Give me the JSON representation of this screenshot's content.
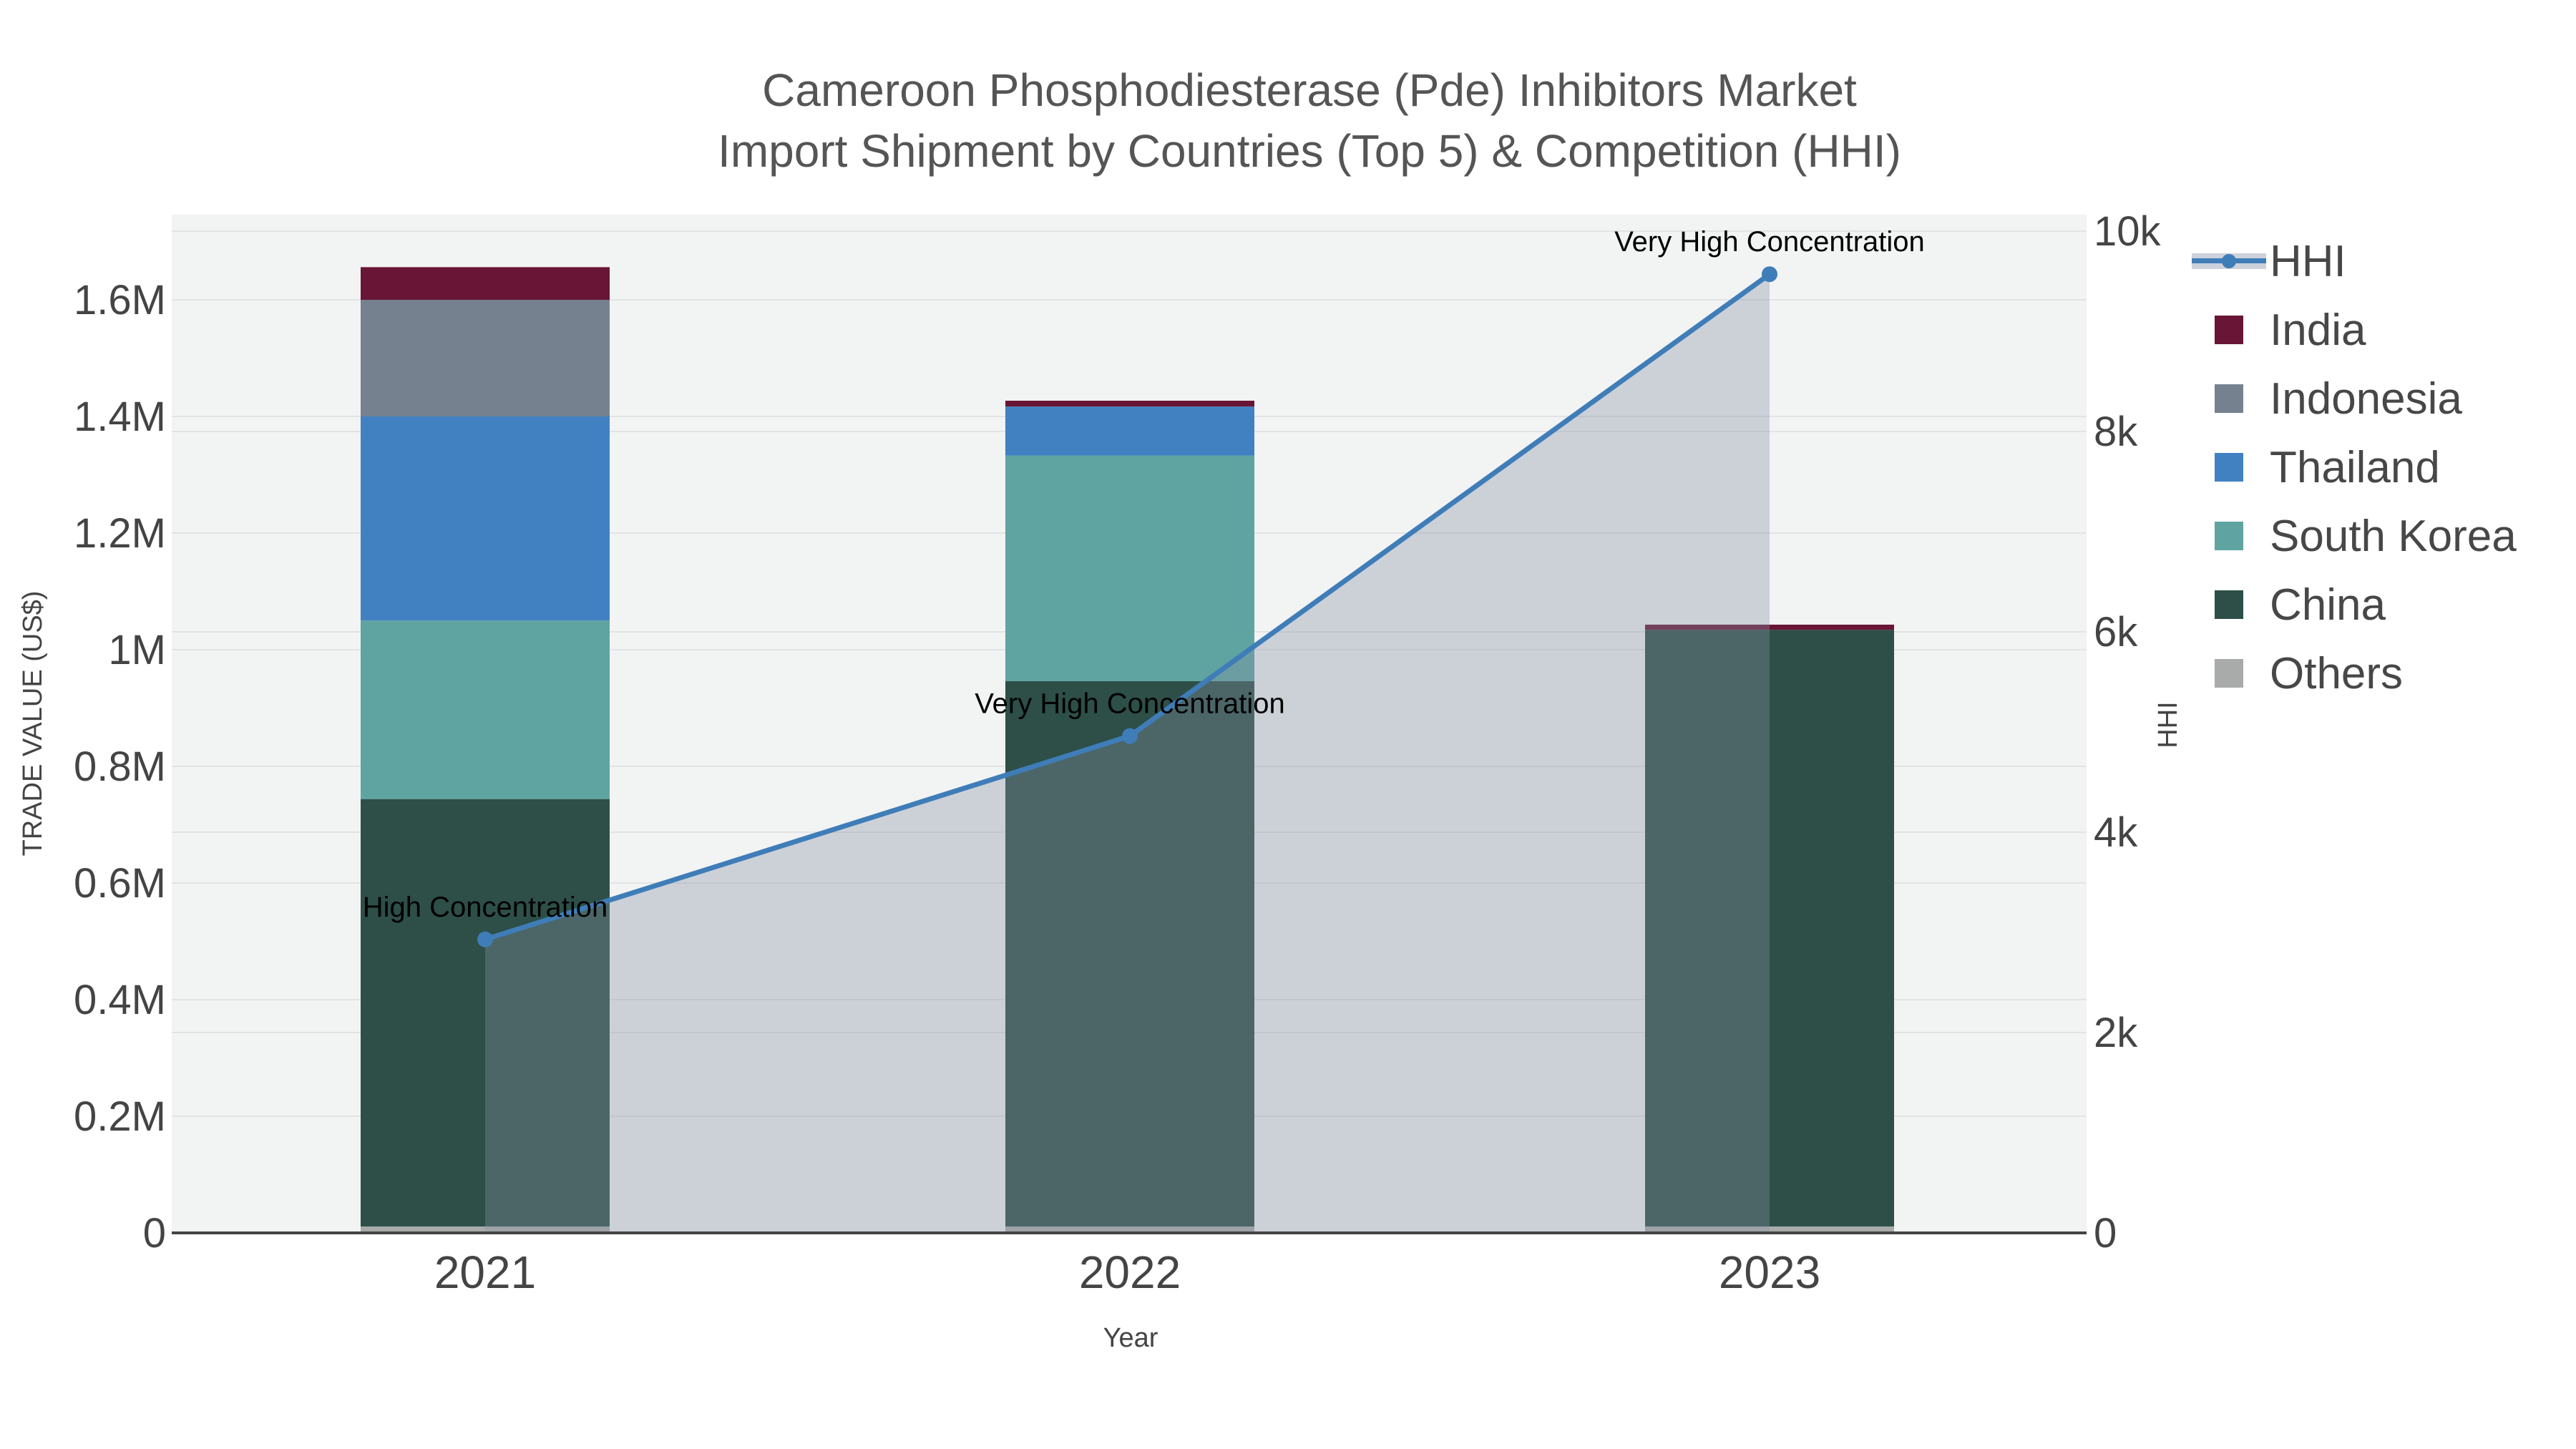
{
  "title": {
    "line1": "Cameroon Phosphodiesterase (Pde) Inhibitors Market",
    "line2": "Import Shipment by Countries (Top 5) & Competition (HHI)"
  },
  "axes": {
    "x": {
      "title": "Year",
      "ticks": [
        "2021",
        "2022",
        "2023"
      ]
    },
    "y_left": {
      "title": "TRADE VALUE (US$)",
      "ticks": [
        {
          "label": "0",
          "value": 0
        },
        {
          "label": "0.2M",
          "value": 200000
        },
        {
          "label": "0.4M",
          "value": 400000
        },
        {
          "label": "0.6M",
          "value": 600000
        },
        {
          "label": "0.8M",
          "value": 800000
        },
        {
          "label": "1M",
          "value": 1000000
        },
        {
          "label": "1.2M",
          "value": 1200000
        },
        {
          "label": "1.4M",
          "value": 1400000
        },
        {
          "label": "1.6M",
          "value": 1600000
        }
      ]
    },
    "y_right": {
      "title": "HHI",
      "ticks": [
        {
          "label": "0",
          "value": 0
        },
        {
          "label": "2k",
          "value": 2000
        },
        {
          "label": "4k",
          "value": 4000
        },
        {
          "label": "6k",
          "value": 6000
        },
        {
          "label": "8k",
          "value": 8000
        },
        {
          "label": "10k",
          "value": 10000
        }
      ]
    }
  },
  "chart_data": {
    "type": "bar",
    "subtype": "stacked-bar-with-line",
    "categories": [
      "2021",
      "2022",
      "2023"
    ],
    "stack_order_bottom_to_top": [
      "Others",
      "China",
      "South Korea",
      "Thailand",
      "Indonesia",
      "India"
    ],
    "series": [
      {
        "name": "India",
        "type": "bar",
        "color": "#691535",
        "values_usd": [
          56000,
          10000,
          9000
        ]
      },
      {
        "name": "Indonesia",
        "type": "bar",
        "color": "#76818F",
        "values_usd": [
          200000,
          0,
          0
        ]
      },
      {
        "name": "Thailand",
        "type": "bar",
        "color": "#4181C1",
        "values_usd": [
          350000,
          84000,
          0
        ]
      },
      {
        "name": "South Korea",
        "type": "bar",
        "color": "#5FA4A0",
        "values_usd": [
          306000,
          387000,
          0
        ]
      },
      {
        "name": "China",
        "type": "bar",
        "color": "#2D4F48",
        "values_usd": [
          733000,
          935000,
          1023000
        ]
      },
      {
        "name": "Others",
        "type": "bar",
        "color": "#A9ABAA",
        "values_usd": [
          11000,
          11000,
          11000
        ]
      }
    ],
    "line_series": {
      "name": "HHI",
      "type": "line",
      "axis": "right",
      "color": "#3F7DB8",
      "area_color": "rgba(135,145,165,0.35)",
      "values": [
        2930,
        4960,
        9570
      ]
    },
    "annotations": [
      {
        "text": "High Concentration",
        "category": "2021",
        "hhi": 2930
      },
      {
        "text": "Very High Concentration",
        "category": "2022",
        "hhi": 4960
      },
      {
        "text": "Very High Concentration",
        "category": "2023",
        "hhi": 9570
      }
    ],
    "xlabel": "Year",
    "ylabel_left": "TRADE VALUE (US$)",
    "ylabel_right": "HHI",
    "ylim_left": [
      0,
      1746000
    ],
    "ylim_right": [
      0,
      10160
    ],
    "grid": true,
    "legend_position": "right"
  },
  "legend": {
    "items": [
      {
        "label": "HHI",
        "kind": "line",
        "color": "#3F7DB8",
        "band_color": "#CCD1DB"
      },
      {
        "label": "India",
        "kind": "swatch",
        "color": "#691535"
      },
      {
        "label": "Indonesia",
        "kind": "swatch",
        "color": "#76818F"
      },
      {
        "label": "Thailand",
        "kind": "swatch",
        "color": "#4181C1"
      },
      {
        "label": "South Korea",
        "kind": "swatch",
        "color": "#5FA4A0"
      },
      {
        "label": "China",
        "kind": "swatch",
        "color": "#2D4F48"
      },
      {
        "label": "Others",
        "kind": "swatch",
        "color": "#A9ABAA"
      }
    ]
  },
  "colors": {
    "plot_bg": "#F2F3F3",
    "gridline": "#E2E3E5",
    "axis_line": "#444444",
    "tick_text": "#444444",
    "title_text": "#555555",
    "annotation_text": "#000000"
  }
}
